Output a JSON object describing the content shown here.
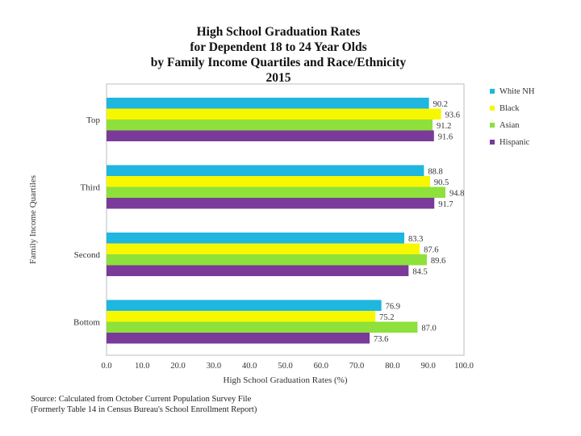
{
  "chart_data": {
    "type": "bar",
    "orientation": "horizontal",
    "title_lines": [
      "High School Graduation Rates",
      "for Dependent 18 to 24 Year Olds",
      "by Family Income Quartiles and Race/Ethnicity",
      "2015"
    ],
    "xlabel": "High School Graduation Rates (%)",
    "ylabel": "Family Income Quartiles",
    "xlim": [
      0,
      100
    ],
    "xticks": [
      "0.0",
      "10.0",
      "20.0",
      "30.0",
      "40.0",
      "50.0",
      "60.0",
      "70.0",
      "80.0",
      "90.0",
      "100.0"
    ],
    "categories": [
      "Top",
      "Third",
      "Second",
      "Bottom"
    ],
    "series": [
      {
        "name": "White NH",
        "color": "#1fb6e0",
        "values": [
          90.2,
          88.8,
          83.3,
          76.9
        ],
        "labels": [
          "90.2",
          "88.8",
          "83.3",
          "76.9"
        ]
      },
      {
        "name": "Black",
        "color": "#f7f700",
        "values": [
          93.6,
          90.5,
          87.6,
          75.2
        ],
        "labels": [
          "93.6",
          "90.5",
          "87.6",
          "75.2"
        ]
      },
      {
        "name": "Asian",
        "color": "#8ee03a",
        "values": [
          91.2,
          94.8,
          89.6,
          87.0
        ],
        "labels": [
          "91.2",
          "94.8",
          "89.6",
          "87.0"
        ]
      },
      {
        "name": "Hispanic",
        "color": "#7a3a9a",
        "values": [
          91.6,
          91.7,
          84.5,
          73.6
        ],
        "labels": [
          "91.6",
          "91.7",
          "84.5",
          "73.6"
        ]
      }
    ],
    "grid": false,
    "legend": "top-right"
  },
  "source": {
    "line1": "Source: Calculated from October Current Population Survey File",
    "line2": "(Formerly Table 14 in Census Bureau's School Enrollment Report)"
  }
}
